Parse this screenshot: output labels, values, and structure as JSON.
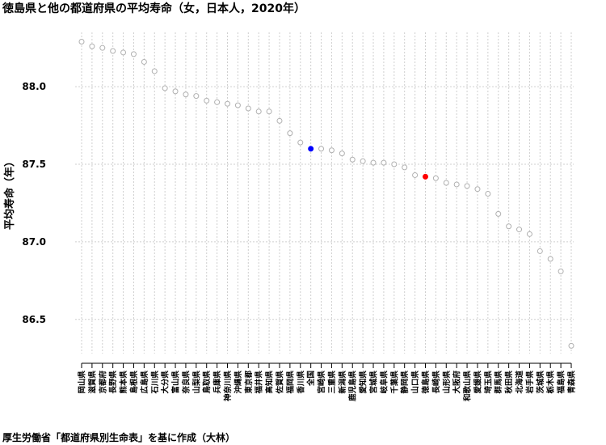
{
  "chart_data": {
    "type": "scatter",
    "title": "徳島県と他の都道府県の平均寿命（女，日本人，2020年）",
    "ylabel": "平均寿命（年）",
    "xlabel": "",
    "yticks": [
      "86.5",
      "87.0",
      "87.5",
      "88.0"
    ],
    "ylim": [
      86.28,
      88.35
    ],
    "grid": true,
    "categories": [
      "岡山県",
      "滋賀県",
      "京都府",
      "長野県",
      "熊本県",
      "島根県",
      "広島県",
      "石川県",
      "大分県",
      "富山県",
      "奈良県",
      "山梨県",
      "鳥取県",
      "兵庫県",
      "神奈川県",
      "沖縄県",
      "東京都",
      "福井県",
      "高知県",
      "佐賀県",
      "福岡県",
      "香川県",
      "全国",
      "宮崎県",
      "三重県",
      "新潟県",
      "鹿児島県",
      "愛知県",
      "宮城県",
      "岐阜県",
      "千葉県",
      "静岡県",
      "山口県",
      "徳島県",
      "長崎県",
      "山形県",
      "大阪府",
      "和歌山県",
      "愛媛県",
      "埼玉県",
      "群馬県",
      "秋田県",
      "北海道",
      "岩手県",
      "茨城県",
      "栃木県",
      "福島県",
      "青森県"
    ],
    "values": [
      88.29,
      88.26,
      88.25,
      88.23,
      88.22,
      88.21,
      88.16,
      88.1,
      87.99,
      87.97,
      87.95,
      87.94,
      87.91,
      87.9,
      87.89,
      87.88,
      87.86,
      87.84,
      87.84,
      87.78,
      87.7,
      87.64,
      87.6,
      87.6,
      87.59,
      87.57,
      87.53,
      87.52,
      87.51,
      87.51,
      87.5,
      87.48,
      87.43,
      87.42,
      87.41,
      87.38,
      87.37,
      87.36,
      87.34,
      87.31,
      87.18,
      87.1,
      87.08,
      87.05,
      86.94,
      86.89,
      86.81,
      86.33
    ],
    "highlight": {
      "徳島県": "#ff0000",
      "全国": "#0000ff"
    },
    "default_marker_color": "#b0b0b0"
  },
  "footnote": "厚生労働省「都道府県別生命表」を基に作成（大林）"
}
